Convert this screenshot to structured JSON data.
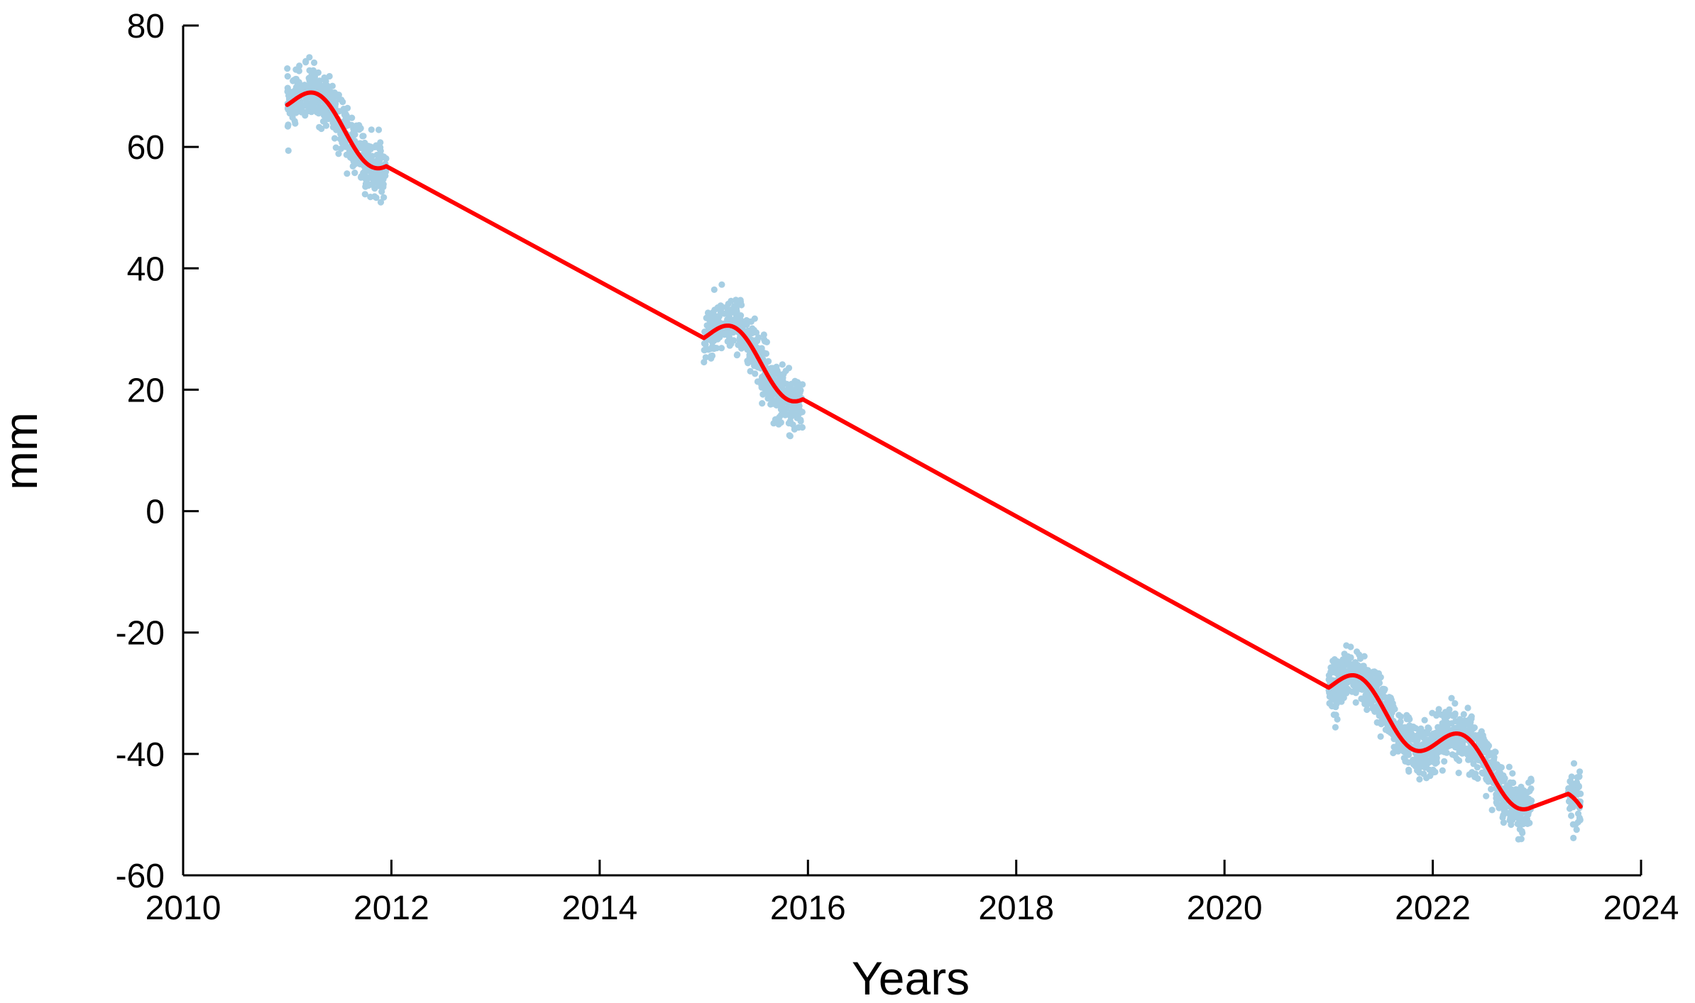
{
  "chart_data": {
    "type": "scatter",
    "title": "",
    "xlabel": "Years",
    "ylabel": "mm",
    "xlim": [
      2010,
      2024
    ],
    "ylim": [
      -60,
      80
    ],
    "xticks": [
      2010,
      2012,
      2014,
      2016,
      2018,
      2020,
      2022,
      2024
    ],
    "xtick_labels": [
      "2010",
      "2012",
      "2014",
      "2016",
      "2018",
      "2020",
      "2022",
      "2024"
    ],
    "yticks": [
      80,
      60,
      40,
      20,
      0,
      -20,
      -40,
      -60
    ],
    "ytick_labels": [
      "80",
      "60",
      "40",
      "20",
      "0",
      "-20",
      "-40",
      "-60"
    ],
    "grid": false,
    "legend": "none",
    "colors": {
      "observations": "#a6cee3",
      "model": "#ff0000",
      "axis": "#000000"
    },
    "series": [
      {
        "kind": "scatter",
        "clusters": [
          {
            "x_range": [
              2011.0,
              2011.95
            ],
            "model_fit": true
          },
          {
            "x_range": [
              2015.0,
              2015.95
            ],
            "model_fit": true
          },
          {
            "x_range": [
              2021.0,
              2022.95
            ],
            "model_fit": true
          },
          {
            "x_range": [
              2023.3,
              2023.42
            ],
            "model_fit": true
          }
        ],
        "spread_mm": 2.2
      },
      {
        "kind": "line",
        "trend": {
          "x0": 2011.0,
          "y0": 68.0,
          "slope_mm_per_year": -9.6
        },
        "seasonal": {
          "amplitude_mm": 3.5,
          "phase_year": 0.3
        },
        "x_range": [
          2011.0,
          2023.42
        ]
      }
    ]
  }
}
